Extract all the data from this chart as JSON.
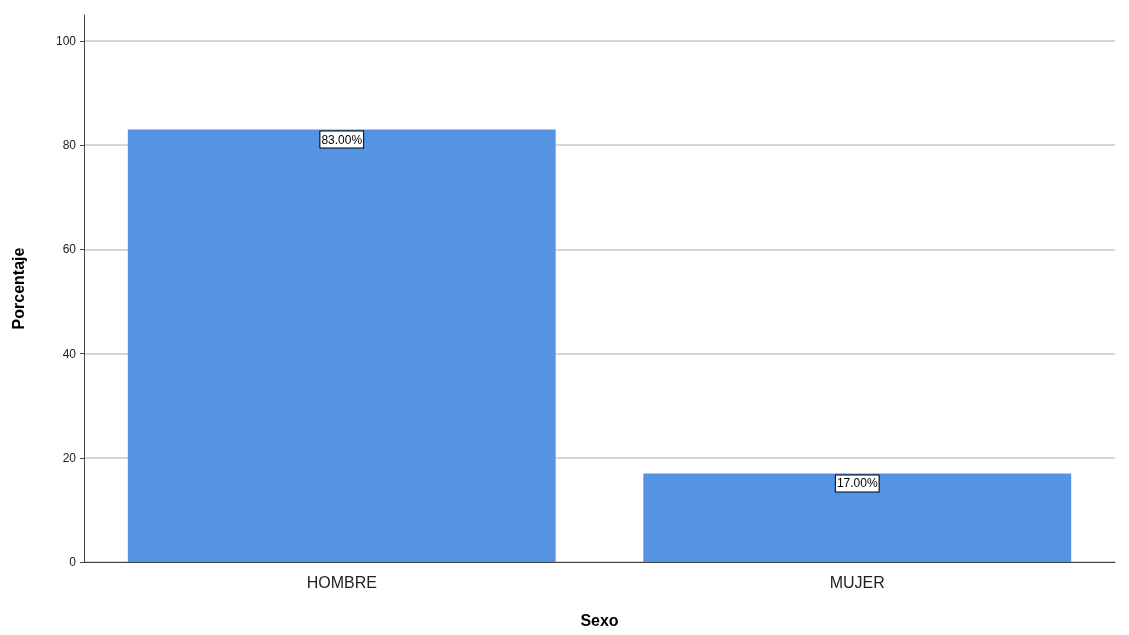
{
  "chart_data": {
    "type": "bar",
    "xlabel": "Sexo",
    "ylabel": "Porcentaje",
    "categories": [
      "HOMBRE",
      "MUJER"
    ],
    "values": [
      83,
      17
    ],
    "value_labels": [
      "83.00%",
      "17.00%"
    ],
    "color": "#5593e3",
    "ylim": [
      0,
      105
    ],
    "yticks": [
      0,
      20,
      40,
      60,
      80,
      100
    ],
    "grid": "y"
  }
}
